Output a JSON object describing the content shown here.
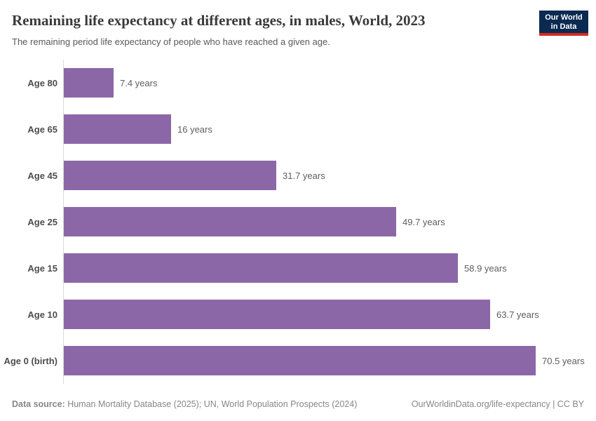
{
  "header": {
    "title": "Remaining life expectancy at different ages, in males, World, 2023",
    "subtitle": "The remaining period life expectancy of people who have reached a given age.",
    "logo": {
      "line1": "Our World",
      "line2": "in Data"
    }
  },
  "chart_data": {
    "type": "bar",
    "orientation": "horizontal",
    "title": "Remaining life expectancy at different ages, in males, World, 2023",
    "subtitle": "The remaining period life expectancy of people who have reached a given age.",
    "categories": [
      "Age 80",
      "Age 65",
      "Age 45",
      "Age 25",
      "Age 15",
      "Age 10",
      "Age 0 (birth)"
    ],
    "values": [
      7.4,
      16,
      31.7,
      49.7,
      58.9,
      63.7,
      70.5
    ],
    "value_labels": [
      "7.4 years",
      "16 years",
      "31.7 years",
      "49.7 years",
      "58.9 years",
      "63.7 years",
      "70.5 years"
    ],
    "unit": "years",
    "xlim": [
      0,
      70.5
    ],
    "grid": false,
    "legend": "none",
    "bar_color": "#8C67A8"
  },
  "footer": {
    "datasource_label": "Data source:",
    "datasource_text": " Human Mortality Database (2025); UN, World Population Prospects (2024)",
    "link_text": "OurWorldinData.org/life-expectancy | CC BY"
  },
  "colors": {
    "bar": "#8C67A8",
    "axis_line": "#d9d9d9",
    "logo_navy": "#0b2a51",
    "logo_red": "#d42a20",
    "title_text": "#3a3a3a",
    "subtitle_text": "#595959",
    "footer_text": "#878787"
  }
}
